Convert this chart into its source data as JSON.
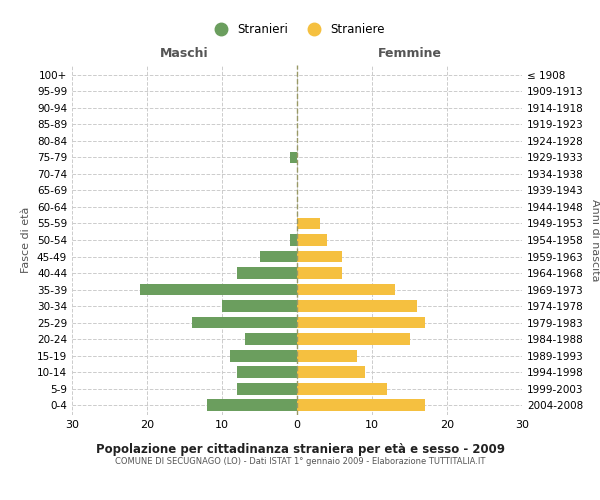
{
  "age_groups": [
    "100+",
    "95-99",
    "90-94",
    "85-89",
    "80-84",
    "75-79",
    "70-74",
    "65-69",
    "60-64",
    "55-59",
    "50-54",
    "45-49",
    "40-44",
    "35-39",
    "30-34",
    "25-29",
    "20-24",
    "15-19",
    "10-14",
    "5-9",
    "0-4"
  ],
  "birth_years": [
    "≤ 1908",
    "1909-1913",
    "1914-1918",
    "1919-1923",
    "1924-1928",
    "1929-1933",
    "1934-1938",
    "1939-1943",
    "1944-1948",
    "1949-1953",
    "1954-1958",
    "1959-1963",
    "1964-1968",
    "1969-1973",
    "1974-1978",
    "1979-1983",
    "1984-1988",
    "1989-1993",
    "1994-1998",
    "1999-2003",
    "2004-2008"
  ],
  "maschi": [
    0,
    0,
    0,
    0,
    0,
    1,
    0,
    0,
    0,
    0,
    1,
    5,
    8,
    21,
    10,
    14,
    7,
    9,
    8,
    8,
    12
  ],
  "femmine": [
    0,
    0,
    0,
    0,
    0,
    0,
    0,
    0,
    0,
    3,
    4,
    6,
    6,
    13,
    16,
    17,
    15,
    8,
    9,
    12,
    17
  ],
  "maschi_color": "#6b9e5e",
  "femmine_color": "#f5c040",
  "title": "Popolazione per cittadinanza straniera per età e sesso - 2009",
  "subtitle": "COMUNE DI SECUGNAGO (LO) - Dati ISTAT 1° gennaio 2009 - Elaborazione TUTTITALIA.IT",
  "ylabel_left": "Fasce di età",
  "ylabel_right": "Anni di nascita",
  "xlabel_left": "Maschi",
  "xlabel_right": "Femmine",
  "legend_stranieri": "Stranieri",
  "legend_straniere": "Straniere",
  "xlim": 30,
  "background_color": "#ffffff",
  "grid_color": "#cccccc",
  "center_line_color": "#999966"
}
